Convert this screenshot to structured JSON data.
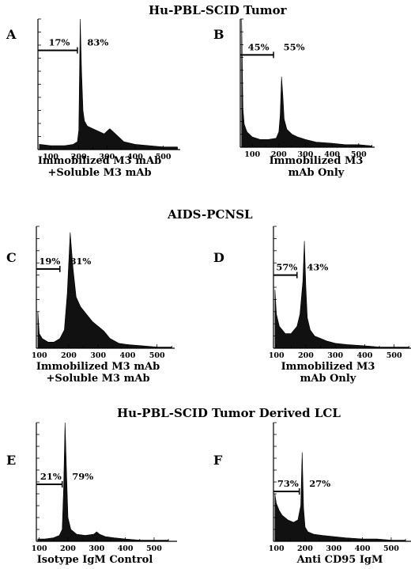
{
  "sections": [
    {
      "title": "Hu-PBL-SCID  Tumor"
    },
    {
      "title": "AIDS-PCNSL"
    },
    {
      "title": "Hu-PBL-SCID  Tumor  Derived  LCL"
    }
  ],
  "chart_data": [
    {
      "type": "area",
      "panel": "A",
      "caption": [
        "Immobilized  M3  mAb",
        "+Soluble  M3  mAb"
      ],
      "xticks": [
        100,
        200,
        300,
        400,
        500
      ],
      "xlim": [
        55,
        560
      ],
      "ylim": [
        0,
        100
      ],
      "gate": {
        "x0": 55,
        "x1": 195,
        "y": 76,
        "label_left": "17%",
        "label_right": "83%"
      },
      "histogram": {
        "x": [
          60,
          100,
          150,
          180,
          195,
          200,
          205,
          210,
          215,
          220,
          230,
          250,
          270,
          290,
          300,
          310,
          320,
          340,
          360,
          400,
          450,
          500,
          550
        ],
        "y": [
          4,
          3,
          3,
          4,
          6,
          15,
          100,
          60,
          30,
          22,
          18,
          16,
          14,
          12,
          14,
          16,
          14,
          10,
          6,
          4,
          3,
          2,
          2
        ]
      }
    },
    {
      "type": "area",
      "panel": "B",
      "caption": [
        "Immobilized  M3",
        "mAb  Only"
      ],
      "xticks": [
        100,
        200,
        300,
        400,
        500
      ],
      "xlim": [
        55,
        560
      ],
      "ylim": [
        0,
        100
      ],
      "gate": {
        "x0": 55,
        "x1": 180,
        "y": 72,
        "label_left": "45%",
        "label_right": "55%"
      },
      "histogram": {
        "x": [
          60,
          65,
          70,
          80,
          100,
          130,
          160,
          190,
          200,
          205,
          210,
          215,
          220,
          230,
          250,
          270,
          300,
          340,
          400,
          450,
          500,
          550
        ],
        "y": [
          100,
          30,
          18,
          12,
          8,
          6,
          6,
          7,
          12,
          25,
          55,
          40,
          22,
          14,
          10,
          8,
          6,
          4,
          3,
          2,
          2,
          1
        ]
      }
    },
    {
      "type": "area",
      "panel": "C",
      "caption": [
        "Immobilized  M3  mAb",
        "+Soluble  M3  mAb"
      ],
      "xticks": [
        100,
        200,
        300,
        400,
        500
      ],
      "xlim": [
        90,
        560
      ],
      "ylim": [
        0,
        100
      ],
      "gate": {
        "x0": 90,
        "x1": 170,
        "y": 65,
        "label_left": "19%",
        "label_right": "81%"
      },
      "histogram": {
        "x": [
          95,
          100,
          110,
          130,
          150,
          170,
          185,
          195,
          205,
          215,
          225,
          240,
          260,
          280,
          300,
          320,
          340,
          370,
          400,
          450,
          500,
          550
        ],
        "y": [
          30,
          12,
          8,
          5,
          5,
          8,
          15,
          45,
          95,
          65,
          42,
          34,
          28,
          22,
          18,
          14,
          8,
          4,
          3,
          2,
          1,
          1
        ]
      }
    },
    {
      "type": "area",
      "panel": "D",
      "caption": [
        "Immobilized  M3",
        "mAb  Only"
      ],
      "xticks": [
        100,
        200,
        300,
        400,
        500
      ],
      "xlim": [
        90,
        560
      ],
      "ylim": [
        0,
        100
      ],
      "gate": {
        "x0": 90,
        "x1": 170,
        "y": 60,
        "label_left": "57%",
        "label_right": "43%"
      },
      "histogram": {
        "x": [
          95,
          100,
          110,
          130,
          150,
          170,
          180,
          190,
          195,
          200,
          205,
          215,
          230,
          250,
          270,
          300,
          340,
          400,
          450,
          500,
          550
        ],
        "y": [
          48,
          28,
          18,
          12,
          12,
          18,
          28,
          55,
          88,
          50,
          25,
          15,
          10,
          8,
          6,
          4,
          3,
          2,
          1,
          1,
          1
        ]
      }
    },
    {
      "type": "area",
      "panel": "E",
      "caption": [
        "Isotype  IgM  Control"
      ],
      "xticks": [
        100,
        200,
        300,
        400,
        500
      ],
      "xlim": [
        90,
        580
      ],
      "ylim": [
        0,
        100
      ],
      "gate": {
        "x0": 90,
        "x1": 180,
        "y": 48,
        "label_left": "21%",
        "label_right": "79%"
      },
      "histogram": {
        "x": [
          95,
          120,
          150,
          170,
          180,
          185,
          190,
          195,
          200,
          210,
          230,
          260,
          290,
          300,
          310,
          330,
          360,
          400,
          450,
          500,
          550
        ],
        "y": [
          2,
          2,
          3,
          5,
          10,
          45,
          100,
          60,
          20,
          10,
          6,
          5,
          6,
          8,
          6,
          4,
          3,
          2,
          1,
          1,
          1
        ]
      }
    },
    {
      "type": "area",
      "panel": "F",
      "caption": [
        "Anti  CD95  IgM"
      ],
      "xticks": [
        100,
        200,
        300,
        400,
        500
      ],
      "xlim": [
        90,
        580
      ],
      "ylim": [
        0,
        100
      ],
      "gate": {
        "x0": 90,
        "x1": 180,
        "y": 42,
        "label_left": "73%",
        "label_right": "27%"
      },
      "histogram": {
        "x": [
          95,
          100,
          110,
          120,
          140,
          160,
          175,
          185,
          190,
          195,
          200,
          210,
          230,
          260,
          300,
          340,
          400,
          450,
          500,
          550
        ],
        "y": [
          40,
          32,
          26,
          22,
          18,
          16,
          18,
          30,
          75,
          28,
          12,
          8,
          6,
          5,
          4,
          3,
          2,
          2,
          1,
          1
        ]
      }
    }
  ]
}
